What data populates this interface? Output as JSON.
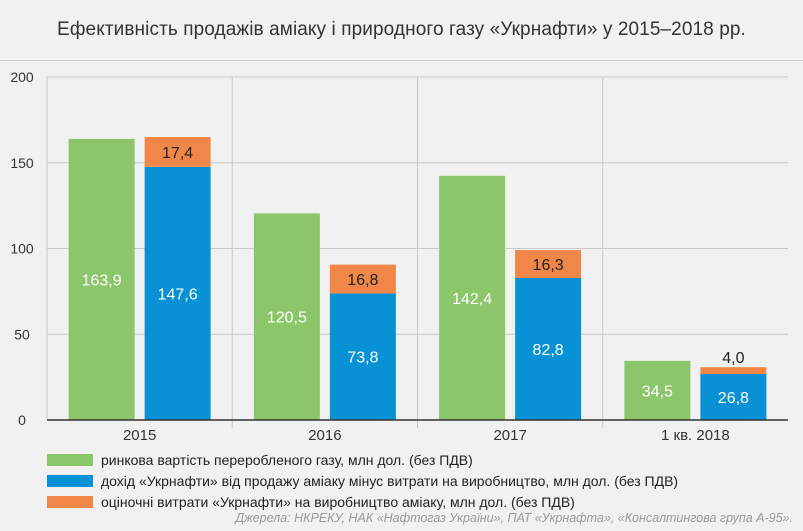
{
  "title": "Ефективність продажів аміаку і природного газу «Укрнафти» у 2015–2018 рр.",
  "source": "Джерела: НКРЕКУ, НАК «Нафтогаз України», ПАТ «Укрнафта», «Консалтингова група А-95».",
  "colors": {
    "green": "#8cc66b",
    "blue": "#0891d4",
    "orange": "#f08748",
    "grid": "#c9c9c9",
    "axis": "#333333",
    "label_light": "#ffffff",
    "label_dark": "#222222"
  },
  "chart_data": {
    "type": "bar",
    "stacked_second_bar": true,
    "categories": [
      "2015",
      "2016",
      "2017",
      "1 кв. 2018"
    ],
    "ylim": [
      0,
      200
    ],
    "yticks": [
      0,
      50,
      100,
      150,
      200
    ],
    "ytick_labels": [
      "0",
      "50",
      "100",
      "150",
      "200"
    ],
    "grid": true,
    "legend_position": "bottom-left",
    "series": [
      {
        "name": "ринкова вартість переробленого газу, млн дол. (без ПДВ)",
        "color_key": "green",
        "values": [
          163.9,
          120.5,
          142.4,
          34.5
        ],
        "labels": [
          "163,9",
          "120,5",
          "142,4",
          "34,5"
        ]
      },
      {
        "name": "дохід «Укрнафти» від продажу аміаку мінус витрати на виробництво, млн дол. (без ПДВ)",
        "color_key": "blue",
        "values": [
          147.6,
          73.8,
          82.8,
          26.8
        ],
        "labels": [
          "147,6",
          "73,8",
          "82,8",
          "26,8"
        ]
      },
      {
        "name": "оціночні витрати «Укрнафти» на виробництво аміаку, млн дол. (без ПДВ)",
        "color_key": "orange",
        "values": [
          17.4,
          16.8,
          16.3,
          4.0
        ],
        "labels": [
          "17,4",
          "16,8",
          "16,3",
          "4,0"
        ]
      }
    ]
  }
}
